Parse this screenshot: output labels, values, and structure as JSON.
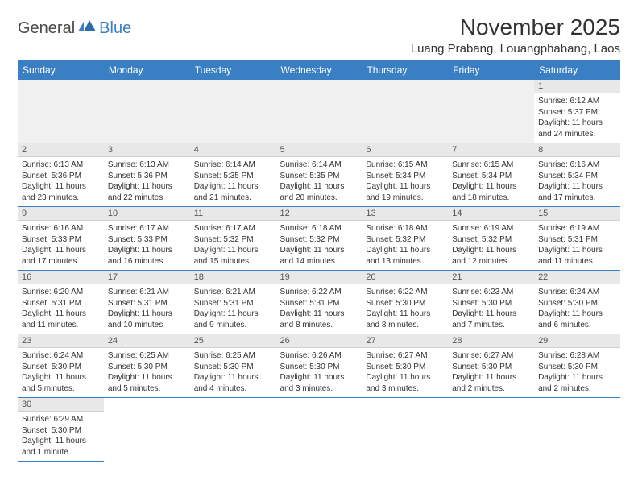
{
  "logo": {
    "part1": "General",
    "part2": "Blue"
  },
  "title": "November 2025",
  "location": "Luang Prabang, Louangphabang, Laos",
  "header_bg": "#3a7fc4",
  "header_fg": "#ffffff",
  "daynum_bg": "#e8e8e8",
  "blank_bg": "#f0f0f0",
  "border_color": "#3a7fc4",
  "weekdays": [
    "Sunday",
    "Monday",
    "Tuesday",
    "Wednesday",
    "Thursday",
    "Friday",
    "Saturday"
  ],
  "weeks": [
    [
      null,
      null,
      null,
      null,
      null,
      null,
      {
        "n": "1",
        "sr": "Sunrise: 6:12 AM",
        "ss": "Sunset: 5:37 PM",
        "dl": "Daylight: 11 hours and 24 minutes."
      }
    ],
    [
      {
        "n": "2",
        "sr": "Sunrise: 6:13 AM",
        "ss": "Sunset: 5:36 PM",
        "dl": "Daylight: 11 hours and 23 minutes."
      },
      {
        "n": "3",
        "sr": "Sunrise: 6:13 AM",
        "ss": "Sunset: 5:36 PM",
        "dl": "Daylight: 11 hours and 22 minutes."
      },
      {
        "n": "4",
        "sr": "Sunrise: 6:14 AM",
        "ss": "Sunset: 5:35 PM",
        "dl": "Daylight: 11 hours and 21 minutes."
      },
      {
        "n": "5",
        "sr": "Sunrise: 6:14 AM",
        "ss": "Sunset: 5:35 PM",
        "dl": "Daylight: 11 hours and 20 minutes."
      },
      {
        "n": "6",
        "sr": "Sunrise: 6:15 AM",
        "ss": "Sunset: 5:34 PM",
        "dl": "Daylight: 11 hours and 19 minutes."
      },
      {
        "n": "7",
        "sr": "Sunrise: 6:15 AM",
        "ss": "Sunset: 5:34 PM",
        "dl": "Daylight: 11 hours and 18 minutes."
      },
      {
        "n": "8",
        "sr": "Sunrise: 6:16 AM",
        "ss": "Sunset: 5:34 PM",
        "dl": "Daylight: 11 hours and 17 minutes."
      }
    ],
    [
      {
        "n": "9",
        "sr": "Sunrise: 6:16 AM",
        "ss": "Sunset: 5:33 PM",
        "dl": "Daylight: 11 hours and 17 minutes."
      },
      {
        "n": "10",
        "sr": "Sunrise: 6:17 AM",
        "ss": "Sunset: 5:33 PM",
        "dl": "Daylight: 11 hours and 16 minutes."
      },
      {
        "n": "11",
        "sr": "Sunrise: 6:17 AM",
        "ss": "Sunset: 5:32 PM",
        "dl": "Daylight: 11 hours and 15 minutes."
      },
      {
        "n": "12",
        "sr": "Sunrise: 6:18 AM",
        "ss": "Sunset: 5:32 PM",
        "dl": "Daylight: 11 hours and 14 minutes."
      },
      {
        "n": "13",
        "sr": "Sunrise: 6:18 AM",
        "ss": "Sunset: 5:32 PM",
        "dl": "Daylight: 11 hours and 13 minutes."
      },
      {
        "n": "14",
        "sr": "Sunrise: 6:19 AM",
        "ss": "Sunset: 5:32 PM",
        "dl": "Daylight: 11 hours and 12 minutes."
      },
      {
        "n": "15",
        "sr": "Sunrise: 6:19 AM",
        "ss": "Sunset: 5:31 PM",
        "dl": "Daylight: 11 hours and 11 minutes."
      }
    ],
    [
      {
        "n": "16",
        "sr": "Sunrise: 6:20 AM",
        "ss": "Sunset: 5:31 PM",
        "dl": "Daylight: 11 hours and 11 minutes."
      },
      {
        "n": "17",
        "sr": "Sunrise: 6:21 AM",
        "ss": "Sunset: 5:31 PM",
        "dl": "Daylight: 11 hours and 10 minutes."
      },
      {
        "n": "18",
        "sr": "Sunrise: 6:21 AM",
        "ss": "Sunset: 5:31 PM",
        "dl": "Daylight: 11 hours and 9 minutes."
      },
      {
        "n": "19",
        "sr": "Sunrise: 6:22 AM",
        "ss": "Sunset: 5:31 PM",
        "dl": "Daylight: 11 hours and 8 minutes."
      },
      {
        "n": "20",
        "sr": "Sunrise: 6:22 AM",
        "ss": "Sunset: 5:30 PM",
        "dl": "Daylight: 11 hours and 8 minutes."
      },
      {
        "n": "21",
        "sr": "Sunrise: 6:23 AM",
        "ss": "Sunset: 5:30 PM",
        "dl": "Daylight: 11 hours and 7 minutes."
      },
      {
        "n": "22",
        "sr": "Sunrise: 6:24 AM",
        "ss": "Sunset: 5:30 PM",
        "dl": "Daylight: 11 hours and 6 minutes."
      }
    ],
    [
      {
        "n": "23",
        "sr": "Sunrise: 6:24 AM",
        "ss": "Sunset: 5:30 PM",
        "dl": "Daylight: 11 hours and 5 minutes."
      },
      {
        "n": "24",
        "sr": "Sunrise: 6:25 AM",
        "ss": "Sunset: 5:30 PM",
        "dl": "Daylight: 11 hours and 5 minutes."
      },
      {
        "n": "25",
        "sr": "Sunrise: 6:25 AM",
        "ss": "Sunset: 5:30 PM",
        "dl": "Daylight: 11 hours and 4 minutes."
      },
      {
        "n": "26",
        "sr": "Sunrise: 6:26 AM",
        "ss": "Sunset: 5:30 PM",
        "dl": "Daylight: 11 hours and 3 minutes."
      },
      {
        "n": "27",
        "sr": "Sunrise: 6:27 AM",
        "ss": "Sunset: 5:30 PM",
        "dl": "Daylight: 11 hours and 3 minutes."
      },
      {
        "n": "28",
        "sr": "Sunrise: 6:27 AM",
        "ss": "Sunset: 5:30 PM",
        "dl": "Daylight: 11 hours and 2 minutes."
      },
      {
        "n": "29",
        "sr": "Sunrise: 6:28 AM",
        "ss": "Sunset: 5:30 PM",
        "dl": "Daylight: 11 hours and 2 minutes."
      }
    ],
    [
      {
        "n": "30",
        "sr": "Sunrise: 6:29 AM",
        "ss": "Sunset: 5:30 PM",
        "dl": "Daylight: 11 hours and 1 minute."
      },
      null,
      null,
      null,
      null,
      null,
      null
    ]
  ]
}
